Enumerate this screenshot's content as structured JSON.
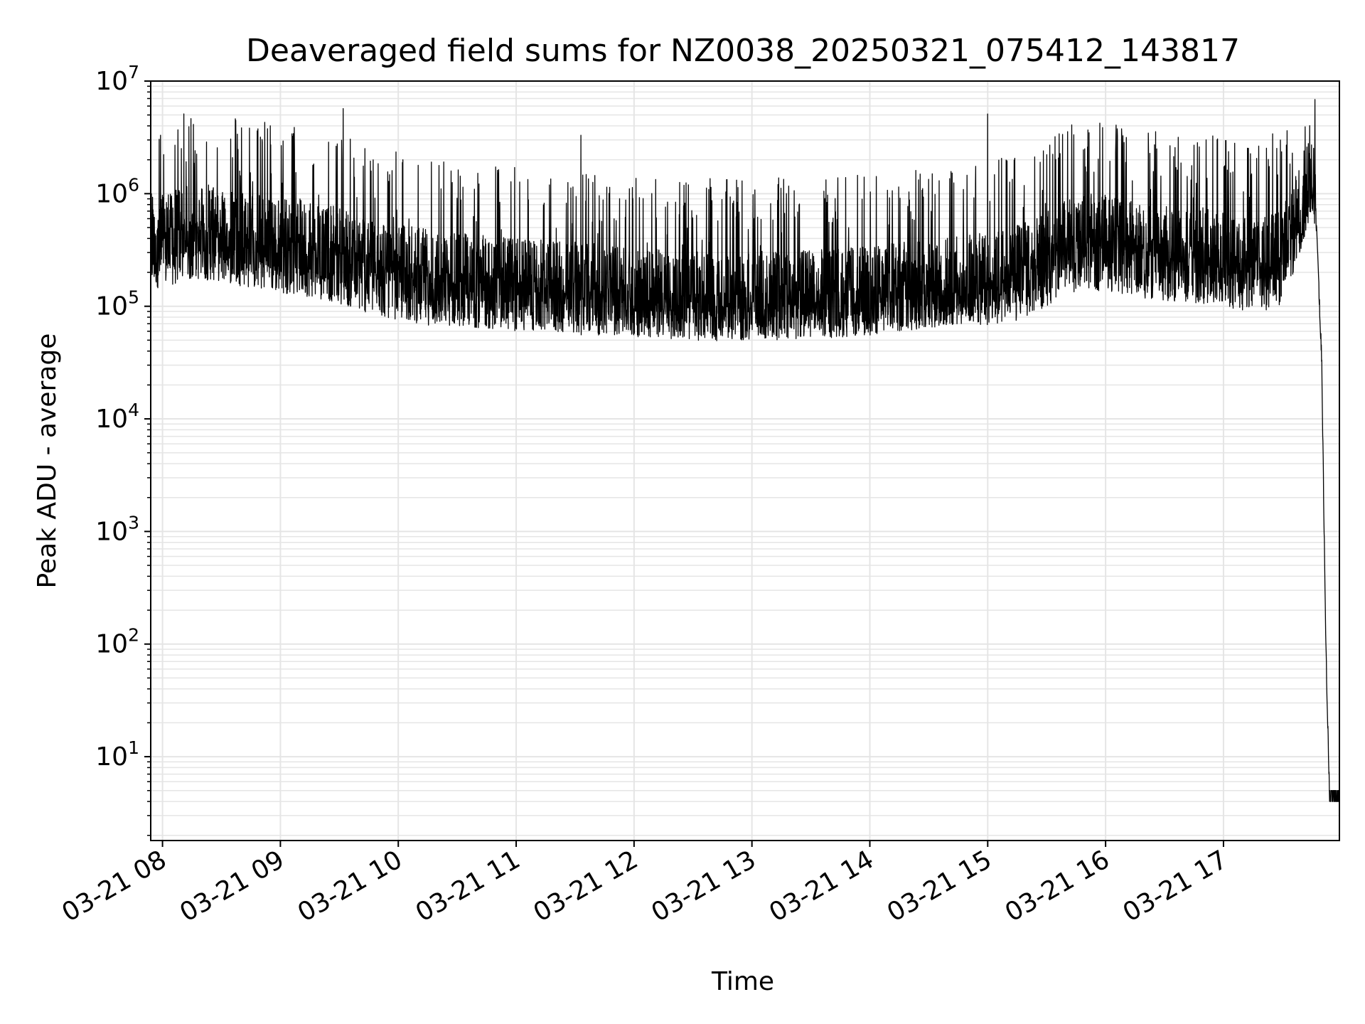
{
  "chart_data": {
    "type": "line",
    "title": "Deaveraged field sums for NZ0038_20250321_075412_143817",
    "xlabel": "Time",
    "ylabel": "Peak ADU - average",
    "yscale": "log",
    "ylim": [
      1.8,
      10000000
    ],
    "xlim": [
      "2025-03-21 07:54",
      "2025-03-21 17:59"
    ],
    "grid": true,
    "x_ticks": [
      {
        "value": "2025-03-21 08:00",
        "label": "03-21 08"
      },
      {
        "value": "2025-03-21 09:00",
        "label": "03-21 09"
      },
      {
        "value": "2025-03-21 10:00",
        "label": "03-21 10"
      },
      {
        "value": "2025-03-21 11:00",
        "label": "03-21 11"
      },
      {
        "value": "2025-03-21 12:00",
        "label": "03-21 12"
      },
      {
        "value": "2025-03-21 13:00",
        "label": "03-21 13"
      },
      {
        "value": "2025-03-21 14:00",
        "label": "03-21 14"
      },
      {
        "value": "2025-03-21 15:00",
        "label": "03-21 15"
      },
      {
        "value": "2025-03-21 16:00",
        "label": "03-21 16"
      },
      {
        "value": "2025-03-21 17:00",
        "label": "03-21 17"
      }
    ],
    "y_ticks": [
      {
        "value": 10,
        "base": "10",
        "exp": "1"
      },
      {
        "value": 100,
        "base": "10",
        "exp": "2"
      },
      {
        "value": 1000,
        "base": "10",
        "exp": "3"
      },
      {
        "value": 10000,
        "base": "10",
        "exp": "4"
      },
      {
        "value": 100000,
        "base": "10",
        "exp": "5"
      },
      {
        "value": 1000000,
        "base": "10",
        "exp": "6"
      },
      {
        "value": 10000000,
        "base": "10",
        "exp": "7"
      }
    ],
    "line_color": "#000000",
    "grid_color": "#e5e5e5",
    "series": [
      {
        "x": [
          "2025-03-21 07:54",
          "2025-03-21 08:00",
          "2025-03-21 08:10",
          "2025-03-21 08:20",
          "2025-03-21 08:30",
          "2025-03-21 08:40",
          "2025-03-21 08:50",
          "2025-03-21 09:00",
          "2025-03-21 09:10",
          "2025-03-21 09:20",
          "2025-03-21 09:30",
          "2025-03-21 09:40",
          "2025-03-21 09:50",
          "2025-03-21 10:00",
          "2025-03-21 10:10",
          "2025-03-21 10:20",
          "2025-03-21 10:30",
          "2025-03-21 10:40",
          "2025-03-21 10:50",
          "2025-03-21 11:00",
          "2025-03-21 11:10",
          "2025-03-21 11:20",
          "2025-03-21 11:30",
          "2025-03-21 11:40",
          "2025-03-21 11:50",
          "2025-03-21 12:00",
          "2025-03-21 12:10",
          "2025-03-21 12:20",
          "2025-03-21 12:30",
          "2025-03-21 12:40",
          "2025-03-21 12:50",
          "2025-03-21 13:00",
          "2025-03-21 13:10",
          "2025-03-21 13:20",
          "2025-03-21 13:30",
          "2025-03-21 13:40",
          "2025-03-21 13:50",
          "2025-03-21 14:00",
          "2025-03-21 14:10",
          "2025-03-21 14:20",
          "2025-03-21 14:30",
          "2025-03-21 14:40",
          "2025-03-21 14:50",
          "2025-03-21 15:00",
          "2025-03-21 15:10",
          "2025-03-21 15:20",
          "2025-03-21 15:30",
          "2025-03-21 15:40",
          "2025-03-21 15:50",
          "2025-03-21 16:00",
          "2025-03-21 16:10",
          "2025-03-21 16:20",
          "2025-03-21 16:30",
          "2025-03-21 16:40",
          "2025-03-21 16:50",
          "2025-03-21 17:00",
          "2025-03-21 17:10",
          "2025-03-21 17:20",
          "2025-03-21 17:30",
          "2025-03-21 17:40",
          "2025-03-21 17:45",
          "2025-03-21 17:47",
          "2025-03-21 17:50",
          "2025-03-21 17:52",
          "2025-03-21 17:54",
          "2025-03-21 17:59"
        ],
        "base": [
          300000,
          280000,
          320000,
          340000,
          330000,
          300000,
          270000,
          260000,
          250000,
          230000,
          210000,
          180000,
          160000,
          150000,
          140000,
          130000,
          125000,
          120000,
          115000,
          112000,
          110000,
          108000,
          105000,
          100000,
          95000,
          92000,
          90000,
          88000,
          86000,
          85000,
          84000,
          85000,
          86000,
          87000,
          88000,
          90000,
          92000,
          95000,
          100000,
          105000,
          110000,
          115000,
          120000,
          125000,
          135000,
          160000,
          200000,
          250000,
          280000,
          270000,
          250000,
          230000,
          220000,
          215000,
          210000,
          200000,
          180000,
          170000,
          200000,
          600000,
          900000,
          600000,
          30000,
          100,
          4,
          4
        ],
        "spread": [
          4,
          4,
          4,
          4,
          4,
          4,
          4,
          4,
          4,
          4,
          4,
          4,
          4,
          4,
          4,
          4,
          3.5,
          3.5,
          3.5,
          3.5,
          3.5,
          3.5,
          3.5,
          3.5,
          3,
          3,
          3,
          3,
          3,
          3,
          3,
          3,
          3,
          3,
          3,
          3,
          3,
          3,
          3,
          3,
          3,
          3,
          3,
          3.5,
          4,
          4,
          4,
          4,
          4,
          4,
          4,
          4,
          4,
          4,
          4,
          4,
          4,
          4,
          4,
          3,
          2,
          1.5,
          1,
          1,
          1,
          1
        ],
        "spikes": [
          {
            "x": "2025-03-21 08:52",
            "y": 4300000
          },
          {
            "x": "2025-03-21 09:32",
            "y": 5700000
          },
          {
            "x": "2025-03-21 11:33",
            "y": 3300000
          },
          {
            "x": "2025-03-21 15:00",
            "y": 5100000
          },
          {
            "x": "2025-03-21 17:25",
            "y": 3400000
          },
          {
            "x": "2025-03-21 17:32",
            "y": 2700000
          },
          {
            "x": "2025-03-21 17:41",
            "y": 2400000
          }
        ]
      }
    ]
  }
}
